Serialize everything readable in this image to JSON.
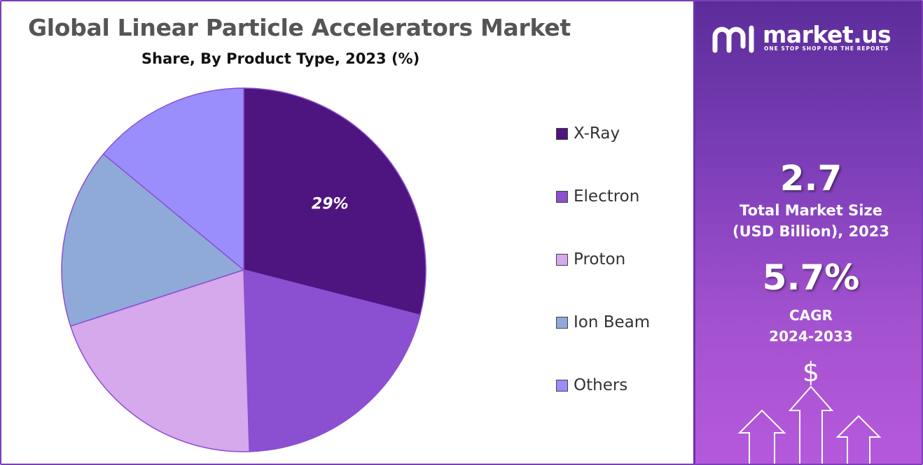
{
  "chart_data": {
    "type": "pie",
    "title": "Global Linear Particle Accelerators Market",
    "subtitle": "Share, By Product Type, 2023 (%)",
    "categories": [
      "X-Ray",
      "Electron",
      "Proton",
      "Ion Beam",
      "Others"
    ],
    "values": [
      29,
      20.5,
      20.5,
      16,
      14
    ],
    "colors": [
      "#4e1580",
      "#8b4fd2",
      "#d6a8ec",
      "#8faad8",
      "#9a8efc"
    ],
    "data_labels": [
      "29%",
      "",
      "",
      "",
      ""
    ],
    "start_angle_deg": 0,
    "direction": "clockwise",
    "legend_position": "right"
  },
  "legend": {
    "items": [
      {
        "label": "X-Ray",
        "color": "#4e1580"
      },
      {
        "label": "Electron",
        "color": "#8b4fd2"
      },
      {
        "label": "Proton",
        "color": "#d6a8ec"
      },
      {
        "label": "Ion Beam",
        "color": "#8faad8"
      },
      {
        "label": "Others",
        "color": "#9a8efc"
      }
    ]
  },
  "brand": {
    "name": "market.us",
    "tagline": "ONE STOP SHOP FOR THE REPORTS",
    "icon": "market-us-logo-icon"
  },
  "stats": {
    "market_size_value": "2.7",
    "market_size_label_line1": "Total Market Size",
    "market_size_label_line2": "(USD Billion), 2023",
    "cagr_value": "5.7%",
    "cagr_label_line1": "CAGR",
    "cagr_label_line2": "2024-2033"
  },
  "decor": {
    "dollar_symbol": "$",
    "growth_icon": "growth-arrows-icon"
  }
}
